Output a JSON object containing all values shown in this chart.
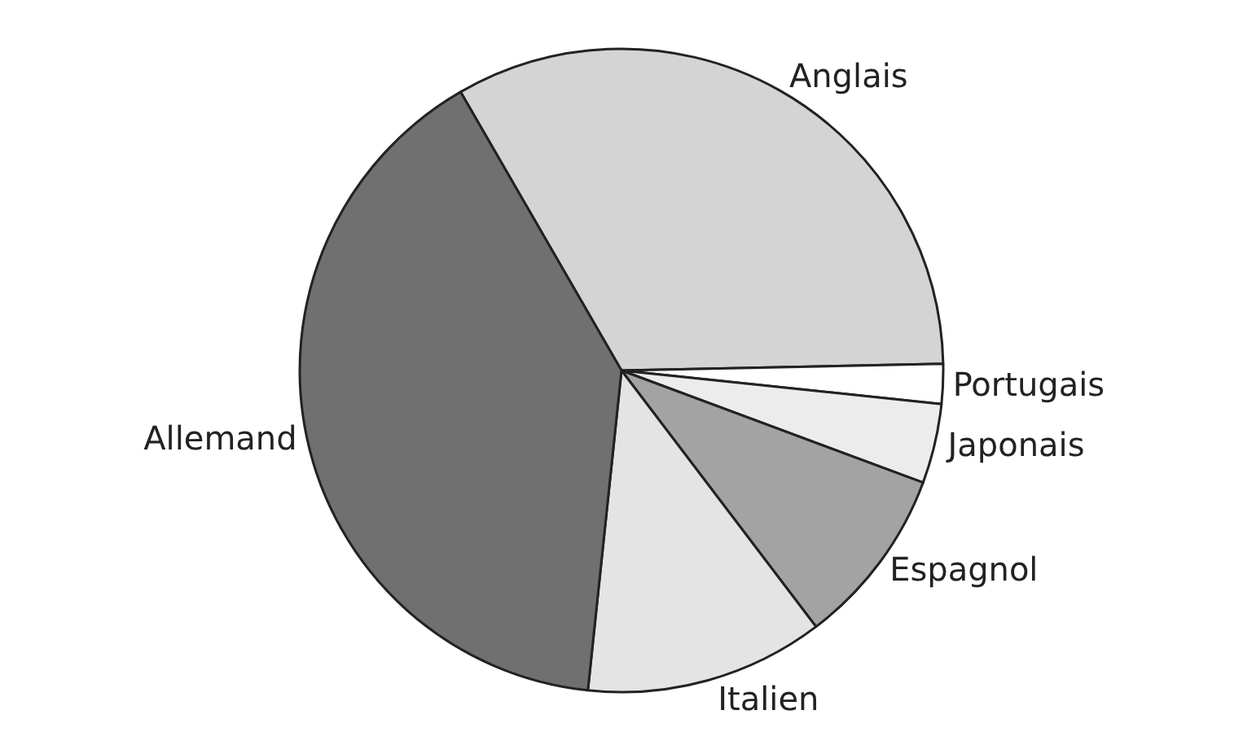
{
  "chart_data": {
    "type": "pie",
    "legend": false,
    "categories": [
      "Anglais",
      "Portugais",
      "Japonais",
      "Espagnol",
      "Italien",
      "Allemand"
    ],
    "values": [
      33,
      2,
      4,
      9,
      12,
      40
    ],
    "colors": [
      "#d4d4d4",
      "#ffffff",
      "#ececec",
      "#a3a3a3",
      "#e4e4e4",
      "#707070"
    ]
  }
}
